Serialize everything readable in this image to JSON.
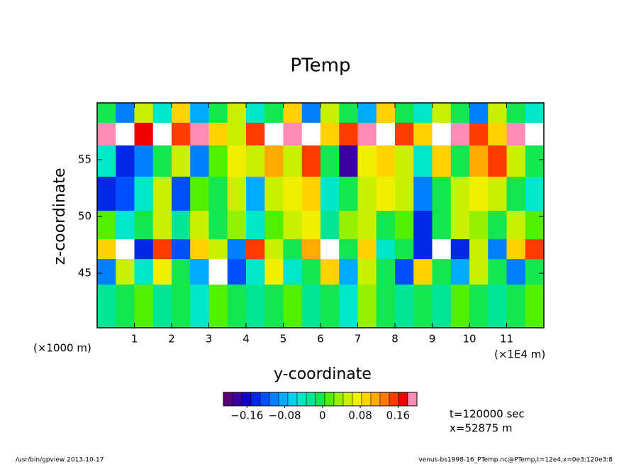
{
  "chart_data": {
    "type": "heatmap",
    "title": "PTemp",
    "xlabel": "y-coordinate",
    "ylabel": "z-coordinate",
    "x_unit_left": "(×1000 m)",
    "x_unit_right": "(×1E4 m)",
    "annotations": [
      "t=120000 sec",
      "x=52875 m"
    ],
    "footer_left": "/usr/bin/gpview  2013-10-17",
    "footer_right": "venus-bs1998-16_PTemp.nc@PTemp,t=12e4,x=0e3:120e3:8",
    "xlim": [
      0,
      12
    ],
    "xticks": [
      1,
      2,
      3,
      4,
      5,
      6,
      7,
      8,
      9,
      10,
      11
    ],
    "ylim": [
      40.2,
      60
    ],
    "yticks": [
      45,
      50,
      55
    ],
    "x": [
      0.25,
      0.75,
      1.25,
      1.75,
      2.25,
      2.75,
      3.25,
      3.75,
      4.25,
      4.75,
      5.25,
      5.75,
      6.25,
      6.75,
      7.25,
      7.75,
      8.25,
      8.75,
      9.25,
      9.75,
      10.25,
      10.75,
      11.25,
      11.75
    ],
    "y": [
      59,
      57.5,
      55,
      52,
      49,
      47,
      45.5,
      42.5
    ],
    "values": [
      [
        0.0,
        -0.1,
        0.05,
        -0.05,
        0.1,
        -0.08,
        0.0,
        0.05,
        -0.05,
        0.0,
        0.1,
        -0.1,
        0.05,
        0.0,
        -0.08,
        0.1,
        0.0,
        -0.05,
        0.05,
        0.0,
        -0.1,
        0.05,
        0.0,
        -0.05
      ],
      [
        0.2,
        0.25,
        0.18,
        0.25,
        0.15,
        0.2,
        0.1,
        0.05,
        0.15,
        0.25,
        0.2,
        0.25,
        0.1,
        0.15,
        0.2,
        0.25,
        0.15,
        0.1,
        0.25,
        0.2,
        0.15,
        0.1,
        0.2,
        0.25
      ],
      [
        -0.05,
        -0.15,
        -0.1,
        0.0,
        0.05,
        -0.1,
        0.02,
        0.08,
        0.05,
        0.12,
        0.05,
        0.15,
        0.0,
        -0.18,
        0.08,
        0.1,
        0.05,
        -0.05,
        0.1,
        0.0,
        0.12,
        0.15,
        0.05,
        0.0
      ],
      [
        -0.15,
        -0.12,
        -0.05,
        0.05,
        -0.12,
        0.02,
        0.0,
        0.05,
        -0.08,
        0.05,
        0.08,
        0.1,
        -0.05,
        0.0,
        0.05,
        0.08,
        0.05,
        -0.1,
        0.0,
        0.05,
        0.08,
        0.05,
        0.0,
        -0.05
      ],
      [
        0.02,
        -0.05,
        0.0,
        0.05,
        -0.03,
        0.05,
        0.0,
        0.03,
        -0.05,
        0.02,
        0.05,
        0.08,
        -0.03,
        0.03,
        0.05,
        0.0,
        0.02,
        -0.15,
        0.0,
        0.05,
        0.03,
        0.0,
        0.05,
        0.02
      ],
      [
        0.1,
        0.25,
        -0.15,
        0.15,
        -0.12,
        0.1,
        0.05,
        -0.1,
        0.15,
        0.05,
        0.0,
        0.12,
        0.25,
        0.0,
        0.1,
        -0.05,
        0.0,
        -0.15,
        0.25,
        -0.15,
        0.05,
        -0.1,
        0.1,
        0.15
      ],
      [
        -0.1,
        0.05,
        -0.05,
        0.08,
        0.0,
        -0.08,
        0.25,
        -0.12,
        -0.05,
        0.08,
        -0.05,
        0.0,
        0.1,
        -0.08,
        0.05,
        0.0,
        -0.12,
        0.1,
        0.0,
        -0.08,
        0.05,
        0.0,
        -0.1,
        0.0
      ],
      [
        -0.02,
        0.0,
        0.02,
        -0.03,
        0.0,
        -0.05,
        0.02,
        0.0,
        -0.03,
        0.0,
        0.02,
        -0.02,
        0.0,
        -0.05,
        0.03,
        0.0,
        -0.03,
        0.0,
        -0.02,
        0.02,
        0.0,
        -0.03,
        0.0,
        0.02
      ]
    ],
    "colorbar": {
      "lim": [
        -0.21,
        0.2
      ],
      "ticks": [
        {
          "value": -0.16,
          "label": "−0.16"
        },
        {
          "value": -0.08,
          "label": "−0.08"
        },
        0,
        0.08,
        0.16
      ],
      "colors": [
        "#5a0078",
        "#3c00a0",
        "#1400c8",
        "#0028e6",
        "#0050ff",
        "#0080ff",
        "#00aaff",
        "#00d2f0",
        "#00e6c8",
        "#00e696",
        "#14e650",
        "#50f000",
        "#96f000",
        "#c8f000",
        "#f0f000",
        "#ffd200",
        "#ffaa00",
        "#ff7800",
        "#ff3c00",
        "#f00000",
        "#ff8cb4"
      ]
    }
  }
}
